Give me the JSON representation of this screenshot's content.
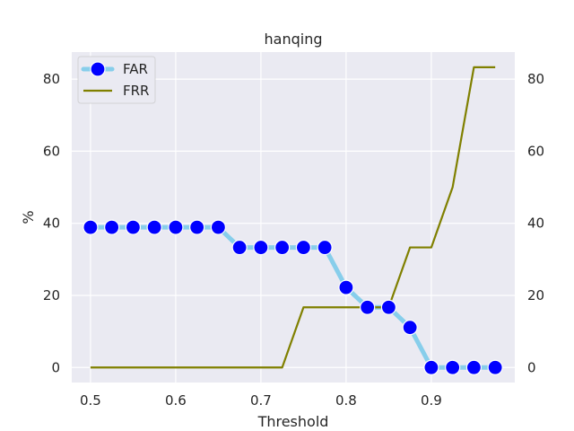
{
  "chart_data": {
    "type": "line",
    "title": "hanqing",
    "xlabel": "Threshold",
    "ylabel": "%",
    "xlim": [
      0.478,
      0.998
    ],
    "ylim": [
      -4.17,
      87.5
    ],
    "grid": true,
    "legend_position": "top-left",
    "x_ticks": [
      "0.5",
      "0.6",
      "0.7",
      "0.8",
      "0.9"
    ],
    "y_ticks": [
      "0",
      "20",
      "40",
      "60",
      "80"
    ],
    "right_y_ticks": [
      "0",
      "20",
      "40",
      "60",
      "80"
    ],
    "x": [
      0.5,
      0.525,
      0.55,
      0.575,
      0.6,
      0.625,
      0.65,
      0.675,
      0.7,
      0.725,
      0.75,
      0.775,
      0.8,
      0.825,
      0.85,
      0.875,
      0.9,
      0.925,
      0.95,
      0.975
    ],
    "series": [
      {
        "name": "FAR",
        "axis": "left",
        "line_color": "#87ceeb",
        "marker_color": "#0000ff",
        "marker_edge": "#ffffff",
        "values": [
          38.9,
          38.9,
          38.9,
          38.9,
          38.9,
          38.9,
          38.9,
          33.3,
          33.3,
          33.3,
          33.3,
          33.3,
          22.2,
          16.7,
          16.7,
          11.1,
          0,
          0,
          0,
          0
        ]
      },
      {
        "name": "FRR",
        "axis": "right",
        "line_color": "#808000",
        "values": [
          0,
          0,
          0,
          0,
          0,
          0,
          0,
          0,
          0,
          0,
          16.7,
          16.7,
          16.7,
          16.7,
          16.7,
          33.3,
          33.3,
          50.0,
          83.3,
          83.3
        ]
      }
    ]
  },
  "colors": {
    "plot_background": "#eaeaf2",
    "grid": "#ffffff",
    "text": "#262626"
  }
}
